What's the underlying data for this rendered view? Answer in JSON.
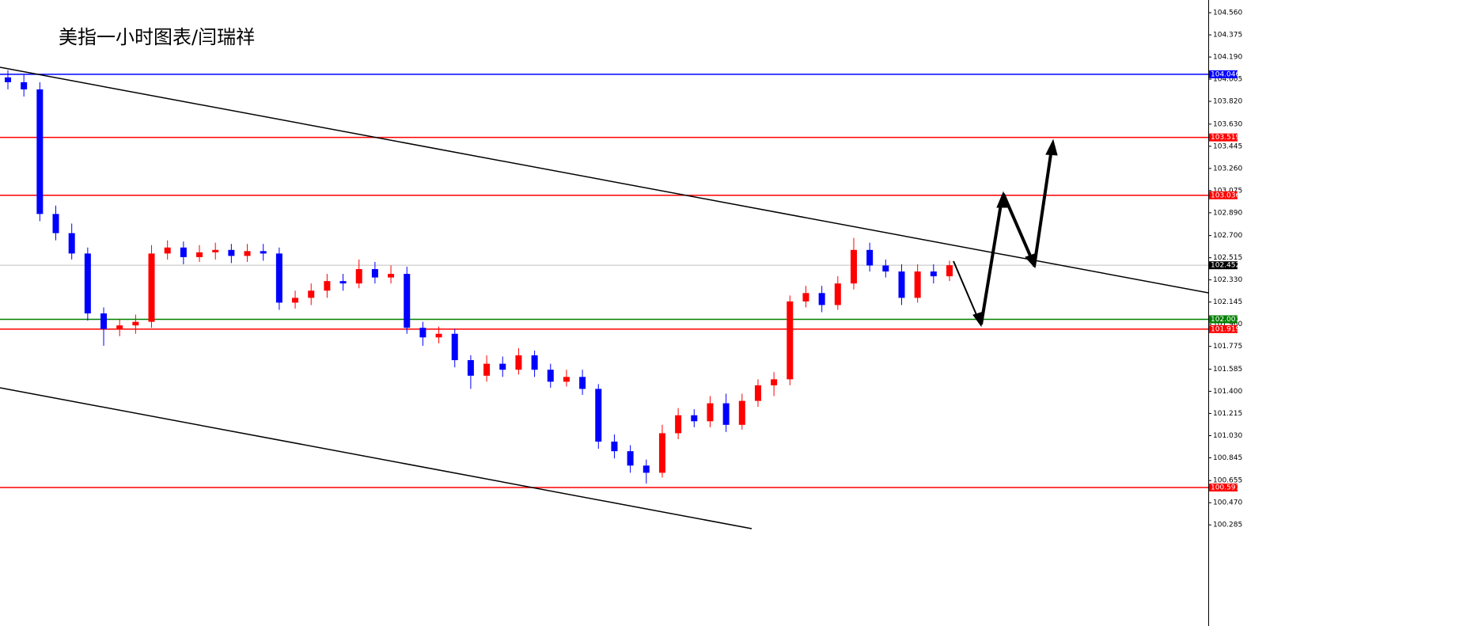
{
  "chart_data": {
    "type": "candlestick",
    "title": "美指一小时图表/闫瑞祥",
    "open": [
      104.02,
      103.98,
      103.92,
      102.88,
      102.72,
      102.55,
      102.05,
      101.92,
      101.95,
      101.98,
      102.55,
      102.6,
      102.52,
      102.56,
      102.58,
      102.53,
      102.57,
      102.55,
      102.14,
      102.18,
      102.24,
      102.32,
      102.3,
      102.42,
      102.35,
      102.38,
      101.93,
      101.85,
      101.88,
      101.66,
      101.53,
      101.63,
      101.58,
      101.7,
      101.58,
      101.48,
      101.52,
      101.42,
      100.98,
      100.9,
      100.78,
      100.72,
      101.05,
      101.2,
      101.15,
      101.3,
      101.12,
      101.32,
      101.45,
      101.5,
      102.15,
      102.22,
      102.12,
      102.3,
      102.58,
      102.45,
      102.4,
      102.18,
      102.4,
      102.36
    ],
    "high": [
      104.08,
      104.04,
      103.98,
      102.95,
      102.8,
      102.6,
      102.1,
      102.0,
      102.04,
      102.62,
      102.66,
      102.65,
      102.62,
      102.64,
      102.63,
      102.63,
      102.63,
      102.6,
      102.24,
      102.3,
      102.38,
      102.38,
      102.5,
      102.48,
      102.45,
      102.44,
      101.98,
      101.94,
      101.92,
      101.7,
      101.7,
      101.69,
      101.76,
      101.74,
      101.63,
      101.58,
      101.58,
      101.46,
      101.04,
      100.95,
      100.83,
      101.12,
      101.26,
      101.25,
      101.36,
      101.38,
      101.38,
      101.5,
      101.56,
      102.2,
      102.28,
      102.28,
      102.36,
      102.68,
      102.64,
      102.5,
      102.46,
      102.46,
      102.46,
      102.49
    ],
    "low": [
      103.92,
      103.86,
      102.82,
      102.66,
      102.5,
      101.99,
      101.78,
      101.86,
      101.88,
      101.93,
      102.5,
      102.46,
      102.48,
      102.5,
      102.47,
      102.48,
      102.49,
      102.08,
      102.09,
      102.12,
      102.18,
      102.24,
      102.26,
      102.3,
      102.3,
      101.88,
      101.78,
      101.8,
      101.6,
      101.42,
      101.48,
      101.52,
      101.54,
      101.52,
      101.43,
      101.44,
      101.37,
      100.92,
      100.84,
      100.72,
      100.63,
      100.68,
      101.0,
      101.1,
      101.1,
      101.06,
      101.08,
      101.27,
      101.36,
      101.45,
      102.1,
      102.06,
      102.08,
      102.25,
      102.4,
      102.35,
      102.12,
      102.14,
      102.3,
      102.32
    ],
    "close": [
      103.98,
      103.92,
      102.88,
      102.72,
      102.55,
      102.05,
      101.92,
      101.95,
      101.98,
      102.55,
      102.6,
      102.52,
      102.56,
      102.58,
      102.53,
      102.57,
      102.55,
      102.14,
      102.18,
      102.24,
      102.32,
      102.3,
      102.42,
      102.35,
      102.38,
      101.93,
      101.85,
      101.88,
      101.66,
      101.53,
      101.63,
      101.58,
      101.7,
      101.58,
      101.48,
      101.52,
      101.42,
      100.98,
      100.9,
      100.78,
      100.72,
      101.05,
      101.2,
      101.15,
      101.3,
      101.12,
      101.32,
      101.45,
      101.5,
      102.15,
      102.22,
      102.12,
      102.3,
      102.58,
      102.45,
      102.4,
      102.18,
      102.4,
      102.36,
      102.452
    ],
    "up_color": "#ff0000",
    "down_color": "#0000ff",
    "ylim": [
      99.441,
      104.666
    ],
    "yticks": [
      {
        "value": 104.56,
        "label": "104.560"
      },
      104.375,
      {
        "value": 104.19,
        "label": "104.190"
      },
      104.005,
      {
        "value": 103.82,
        "label": "103.820"
      },
      {
        "value": 103.63,
        "label": "103.630"
      },
      103.445,
      {
        "value": 103.26,
        "label": "103.260"
      },
      103.075,
      {
        "value": 102.89,
        "label": "102.890"
      },
      {
        "value": 102.7,
        "label": "102.700"
      },
      102.515,
      {
        "value": 102.33,
        "label": "102.330"
      },
      102.145,
      {
        "value": 101.96,
        "label": "101.960"
      },
      101.775,
      101.585,
      {
        "value": 101.4,
        "label": "101.400"
      },
      101.215,
      {
        "value": 101.03,
        "label": "101.030"
      },
      100.845,
      100.655,
      {
        "value": 100.47,
        "label": "100.470"
      },
      100.285
    ],
    "levels": [
      {
        "value": 104.046,
        "color": "#0000ff"
      },
      {
        "value": 103.519,
        "color": "#ff0000"
      },
      {
        "value": 103.036,
        "color": "#ff0000"
      },
      {
        "value": 102.452,
        "color": "#c0c0c0"
      },
      {
        "value": 102.001,
        "color": "#008000"
      },
      {
        "value": 101.919,
        "color": "#ff0000"
      },
      {
        "value": 100.597,
        "color": "#ff0000"
      }
    ]
  }
}
